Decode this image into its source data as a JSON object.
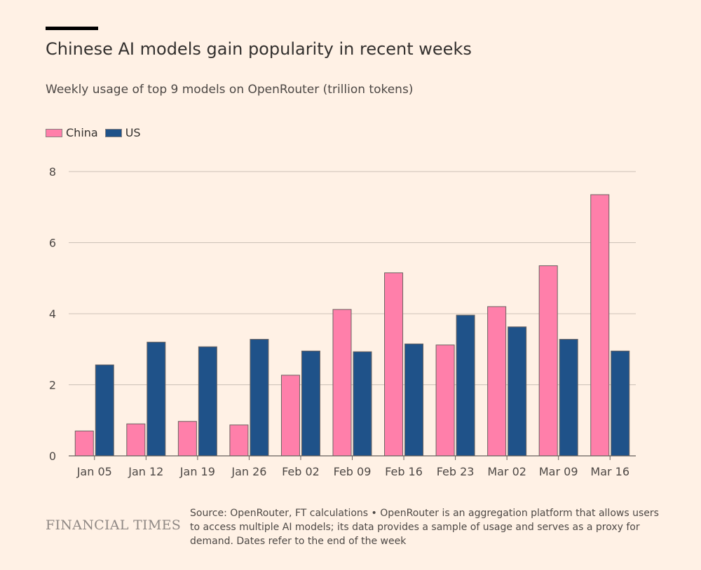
{
  "header": {
    "title": "Chinese AI models gain popularity in recent weeks",
    "subtitle": "Weekly usage of top 9 models on OpenRouter (trillion tokens)"
  },
  "legend": {
    "china_label": "China",
    "us_label": "US"
  },
  "colors": {
    "china": "#ff7faa",
    "us": "#1f5289",
    "background": "#fff1e5",
    "grid": "#ccc1b7"
  },
  "chart_data": {
    "type": "bar",
    "title": "Chinese AI models gain popularity in recent weeks",
    "subtitle": "Weekly usage of top 9 models on OpenRouter (trillion tokens)",
    "xlabel": "",
    "ylabel": "",
    "categories": [
      "Jan 05",
      "Jan 12",
      "Jan 19",
      "Jan 26",
      "Feb 02",
      "Feb 09",
      "Feb 16",
      "Feb 23",
      "Mar 02",
      "Mar 09",
      "Mar 16"
    ],
    "series": [
      {
        "name": "China",
        "color": "#ff7faa",
        "values": [
          0.7,
          0.9,
          0.97,
          0.87,
          2.27,
          4.12,
          5.15,
          3.12,
          4.2,
          5.35,
          7.35
        ]
      },
      {
        "name": "US",
        "color": "#1f5289",
        "values": [
          2.56,
          3.2,
          3.07,
          3.28,
          2.95,
          2.93,
          3.15,
          3.96,
          3.63,
          3.28,
          2.95
        ]
      }
    ],
    "ylim": [
      0,
      8
    ],
    "yticks": [
      0,
      2,
      4,
      6,
      8
    ],
    "grid": true,
    "legend_position": "top-left"
  },
  "footer": {
    "logo": "FINANCIAL TIMES",
    "source": "Source: OpenRouter, FT calculations • OpenRouter is an aggregation platform that allows users to access multiple AI models; its data provides a sample of usage and serves as a proxy for demand. Dates refer to the end of the week"
  }
}
